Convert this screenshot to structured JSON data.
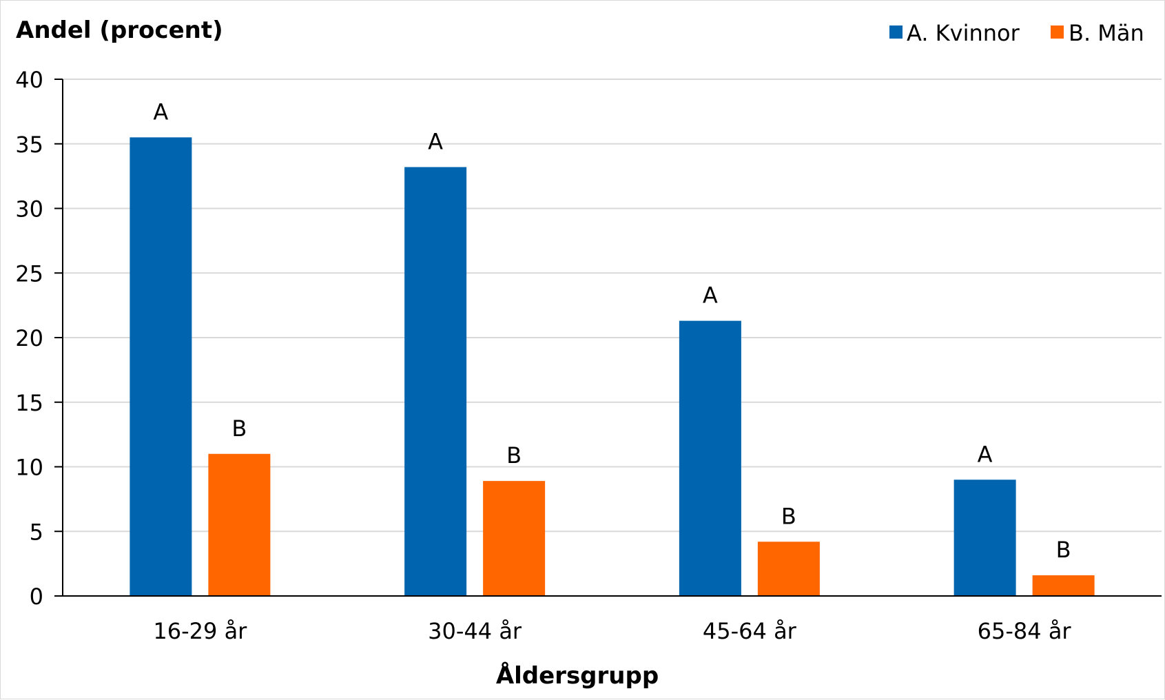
{
  "chart_data": {
    "type": "bar",
    "ylabel": "Andel (procent)",
    "xlabel": "Åldersgrupp",
    "ylim": [
      0,
      40
    ],
    "yticks": [
      0,
      5,
      10,
      15,
      20,
      25,
      30,
      35,
      40
    ],
    "grid": true,
    "legend_position": "top-right",
    "categories": [
      "16-29 år",
      "30-44 år",
      "45-64 år",
      "65-84 år"
    ],
    "series": [
      {
        "name": "A. Kvinnor",
        "color": "#0064AF",
        "values": [
          35.5,
          33.2,
          21.3,
          9.0
        ],
        "labels": [
          "A",
          "A",
          "A",
          "A"
        ]
      },
      {
        "name": "B. Män",
        "color": "#FF6600",
        "values": [
          11.0,
          8.9,
          4.2,
          1.6
        ],
        "labels": [
          "B",
          "B",
          "B",
          "B"
        ]
      }
    ]
  }
}
